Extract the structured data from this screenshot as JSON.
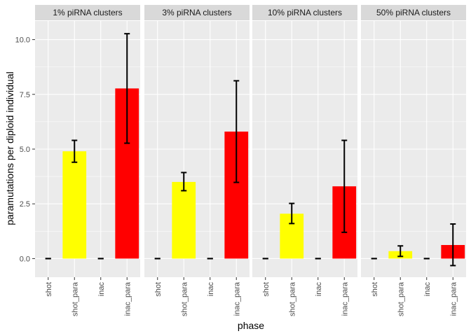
{
  "chart_data": {
    "type": "bar",
    "xlabel": "phase",
    "ylabel": "paramutations per diploid individual",
    "ylim": [
      -0.85,
      10.85
    ],
    "yticks": [
      0,
      2.5,
      5,
      7.5,
      10
    ],
    "ytick_labels": [
      "0.0",
      "2.5",
      "5.0",
      "7.5",
      "10.0"
    ],
    "categories": [
      "shot",
      "shot_para",
      "inac",
      "inac_para"
    ],
    "category_colors": {
      "shot": "#FFFF00",
      "shot_para": "#FFFF00",
      "inac": "#FF0000",
      "inac_para": "#FF0000"
    },
    "errorbar_color": "#000000",
    "panels": [
      {
        "title": "1% piRNA clusters",
        "values": [
          0,
          4.9,
          0,
          7.77
        ],
        "err_low": [
          0,
          4.4,
          0,
          5.27
        ],
        "err_high": [
          0,
          5.4,
          0,
          10.27
        ]
      },
      {
        "title": "3% piRNA clusters",
        "values": [
          0,
          3.5,
          0,
          5.8
        ],
        "err_low": [
          0,
          3.1,
          0,
          3.48
        ],
        "err_high": [
          0,
          3.93,
          0,
          8.12
        ]
      },
      {
        "title": "10% piRNA clusters",
        "values": [
          0,
          2.05,
          0,
          3.3
        ],
        "err_low": [
          0,
          1.6,
          0,
          1.2
        ],
        "err_high": [
          0,
          2.52,
          0,
          5.4
        ]
      },
      {
        "title": "50% piRNA clusters",
        "values": [
          0,
          0.34,
          0,
          0.62
        ],
        "err_low": [
          0,
          0.1,
          0,
          -0.32
        ],
        "err_high": [
          0,
          0.58,
          0,
          1.58
        ]
      }
    ]
  }
}
